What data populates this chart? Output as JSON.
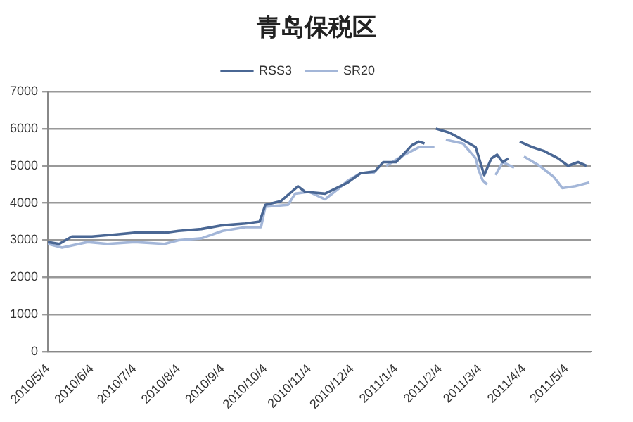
{
  "chart_data": {
    "type": "line",
    "title": "青岛保税区",
    "series": [
      {
        "name": "RSS3",
        "color": "#4a6794",
        "x": [
          "2010-05-04",
          "2010-05-12",
          "2010-05-21",
          "2010-06-04",
          "2010-06-20",
          "2010-07-04",
          "2010-07-25",
          "2010-08-04",
          "2010-08-20",
          "2010-09-04",
          "2010-09-20",
          "2010-09-30",
          "2010-10-04",
          "2010-10-15",
          "2010-10-27",
          "2010-11-01",
          "2010-11-15",
          "2010-12-01",
          "2010-12-10",
          "2010-12-20",
          "2010-12-26",
          "2011-01-04",
          "2011-01-15",
          "2011-01-20",
          "2011-01-24",
          "2011-01-28",
          "2011-02-01",
          "2011-02-10",
          "2011-02-20",
          "2011-03-01",
          "2011-03-07",
          "2011-03-12",
          "2011-03-16",
          "2011-03-20",
          "2011-03-24",
          "2011-03-28",
          "2011-04-01",
          "2011-04-10",
          "2011-04-18",
          "2011-04-28",
          "2011-05-05",
          "2011-05-12",
          "2011-05-18"
        ],
        "values": [
          2950,
          2900,
          3100,
          3100,
          3150,
          3200,
          3200,
          3250,
          3300,
          3400,
          3450,
          3500,
          3950,
          4050,
          4450,
          4300,
          4250,
          4550,
          4800,
          4850,
          5100,
          5100,
          5550,
          5650,
          5600,
          null,
          6000,
          5900,
          5700,
          5500,
          4750,
          5200,
          5300,
          5100,
          5200,
          null,
          5650,
          5500,
          5400,
          5200,
          5000,
          5100,
          5000
        ]
      },
      {
        "name": "SR20",
        "color": "#a3b6d8",
        "x": [
          "2010-05-04",
          "2010-05-14",
          "2010-06-01",
          "2010-06-15",
          "2010-07-04",
          "2010-07-25",
          "2010-08-04",
          "2010-08-20",
          "2010-09-04",
          "2010-09-20",
          "2010-10-01",
          "2010-10-04",
          "2010-10-20",
          "2010-10-25",
          "2010-11-04",
          "2010-11-15",
          "2010-11-25",
          "2010-12-01",
          "2010-12-10",
          "2010-12-20",
          "2010-12-24",
          "2010-12-28",
          "2011-01-10",
          "2011-01-20",
          "2011-01-31",
          "2011-02-04",
          "2011-02-08",
          "2011-02-20",
          "2011-03-01",
          "2011-03-03",
          "2011-03-06",
          "2011-03-09",
          "2011-03-12",
          "2011-03-15",
          "2011-03-20",
          "2011-03-28",
          "2011-04-01",
          "2011-04-04",
          "2011-04-15",
          "2011-04-25",
          "2011-05-01",
          "2011-05-10",
          "2011-05-20"
        ],
        "values": [
          2900,
          2800,
          2950,
          2900,
          2950,
          2900,
          3000,
          3050,
          3250,
          3350,
          3350,
          3900,
          3950,
          4250,
          4300,
          4100,
          4400,
          4600,
          4800,
          4800,
          null,
          5000,
          5300,
          5500,
          5500,
          null,
          5700,
          5600,
          5200,
          4900,
          4600,
          4500,
          null,
          4750,
          5100,
          4950,
          null,
          5250,
          5000,
          4700,
          4400,
          4450,
          4550
        ]
      }
    ],
    "xlim": [
      "2010-05-04",
      "2011-05-21"
    ],
    "xticks": [
      {
        "value": "2010-05-04",
        "label": "2010/5/4"
      },
      {
        "value": "2010-06-04",
        "label": "2010/6/4"
      },
      {
        "value": "2010-07-04",
        "label": "2010/7/4"
      },
      {
        "value": "2010-08-04",
        "label": "2010/8/4"
      },
      {
        "value": "2010-09-04",
        "label": "2010/9/4"
      },
      {
        "value": "2010-10-04",
        "label": "2010/10/4"
      },
      {
        "value": "2010-11-04",
        "label": "2010/11/4"
      },
      {
        "value": "2010-12-04",
        "label": "2010/12/4"
      },
      {
        "value": "2011-01-04",
        "label": "2011/1/4"
      },
      {
        "value": "2011-02-04",
        "label": "2011/2/4"
      },
      {
        "value": "2011-03-04",
        "label": "2011/3/4"
      },
      {
        "value": "2011-04-04",
        "label": "2011/4/4"
      },
      {
        "value": "2011-05-04",
        "label": "2011/5/4"
      }
    ],
    "ylim": [
      0,
      7000
    ],
    "yticks": [
      0,
      1000,
      2000,
      3000,
      4000,
      5000,
      6000,
      7000
    ],
    "grid": "y",
    "legend": "top",
    "marker": "none",
    "line_style": "solid"
  }
}
